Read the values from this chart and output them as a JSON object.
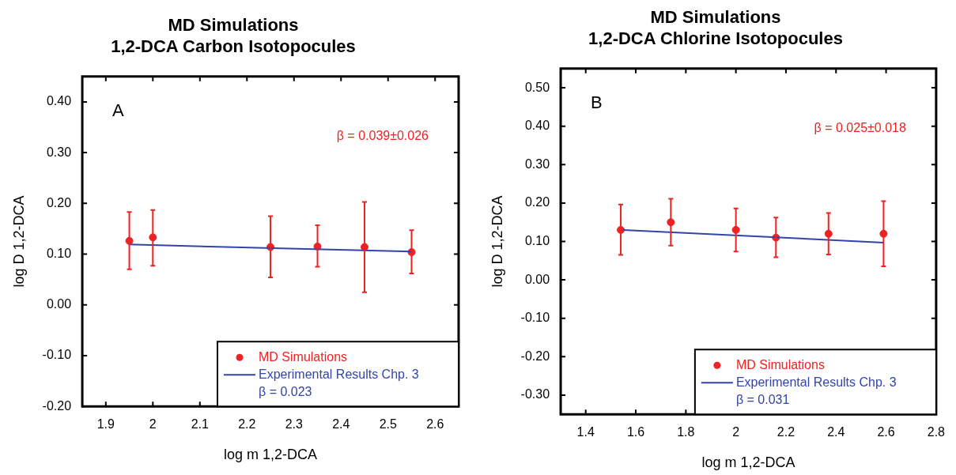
{
  "chart_data": [
    {
      "type": "scatter",
      "title": "MD Simulations\n1,2-DCA Carbon Isotopocules",
      "xlabel": "log m 1,2-DCA",
      "ylabel": "log D 1,2-DCA",
      "xlim": [
        1.85,
        2.65
      ],
      "xticks": [
        1.9,
        2,
        2.1,
        2.2,
        2.3,
        2.4,
        2.5,
        2.6
      ],
      "ylim": [
        -0.2,
        0.45
      ],
      "yticks": [
        {
          "value": -0.2,
          "label": "-0.20"
        },
        {
          "value": -0.1,
          "label": "-0.10"
        },
        {
          "value": 0,
          "label": "0.00"
        },
        {
          "value": 0.1,
          "label": "0.10"
        },
        {
          "value": 0.2,
          "label": "0.20"
        },
        {
          "value": 0.3,
          "label": "0.30"
        },
        {
          "value": 0.4,
          "label": "0.40"
        }
      ],
      "legend": "bottom right",
      "annotations": [
        "A",
        "β = 0.039±0.026"
      ],
      "series": [
        {
          "name": "MD Simulations",
          "color": "#ee2222",
          "marker": "circle",
          "x": [
            1.95,
            2.0,
            2.25,
            2.35,
            2.45,
            2.55
          ],
          "values": [
            0.126,
            0.133,
            0.114,
            0.115,
            0.114,
            0.104
          ],
          "errors": [
            [
              0.07,
              0.183
            ],
            [
              0.077,
              0.187
            ],
            [
              0.054,
              0.175
            ],
            [
              0.075,
              0.157
            ],
            [
              0.025,
              0.203
            ],
            [
              0.062,
              0.147
            ]
          ]
        },
        {
          "name": "Experimental Results Chp. 3\nβ = 0.023",
          "type": "line",
          "color": "#3344aa",
          "marker": "none",
          "x": [
            1.95,
            2.55
          ],
          "values": [
            0.119,
            0.105
          ]
        }
      ]
    },
    {
      "type": "scatter",
      "title": "MD Simulations\n1,2-DCA Chlorine Isotopocules",
      "xlabel": "log m 1,2-DCA",
      "ylabel": "log D 1,2-DCA",
      "xlim": [
        1.3,
        2.8
      ],
      "xticks": [
        1.4,
        1.6,
        1.8,
        2,
        2.2,
        2.4,
        2.6,
        2.8
      ],
      "ylim": [
        -0.35,
        0.55
      ],
      "yticks": [
        {
          "value": -0.3,
          "label": "-0.30"
        },
        {
          "value": -0.2,
          "label": "-0.20"
        },
        {
          "value": -0.1,
          "label": "-0.10"
        },
        {
          "value": 0,
          "label": "0.00"
        },
        {
          "value": 0.1,
          "label": "0.10"
        },
        {
          "value": 0.2,
          "label": "0.20"
        },
        {
          "value": 0.3,
          "label": "0.30"
        },
        {
          "value": 0.4,
          "label": "0.40"
        },
        {
          "value": 0.5,
          "label": "0.50"
        }
      ],
      "legend": "bottom right",
      "annotations": [
        "B",
        "β = 0.025±0.018"
      ],
      "series": [
        {
          "name": "MD Simulations",
          "color": "#ee2222",
          "marker": "circle",
          "x": [
            1.54,
            1.74,
            2.0,
            2.16,
            2.37,
            2.59
          ],
          "values": [
            0.13,
            0.15,
            0.13,
            0.11,
            0.12,
            0.12
          ],
          "errors": [
            [
              0.065,
              0.196
            ],
            [
              0.089,
              0.211
            ],
            [
              0.074,
              0.186
            ],
            [
              0.059,
              0.162
            ],
            [
              0.066,
              0.174
            ],
            [
              0.035,
              0.205
            ]
          ]
        },
        {
          "name": "Experimental Results Chp. 3\nβ = 0.031",
          "type": "line",
          "color": "#3344aa",
          "marker": "none",
          "x": [
            1.55,
            2.59
          ],
          "values": [
            0.13,
            0.097
          ]
        }
      ]
    }
  ]
}
